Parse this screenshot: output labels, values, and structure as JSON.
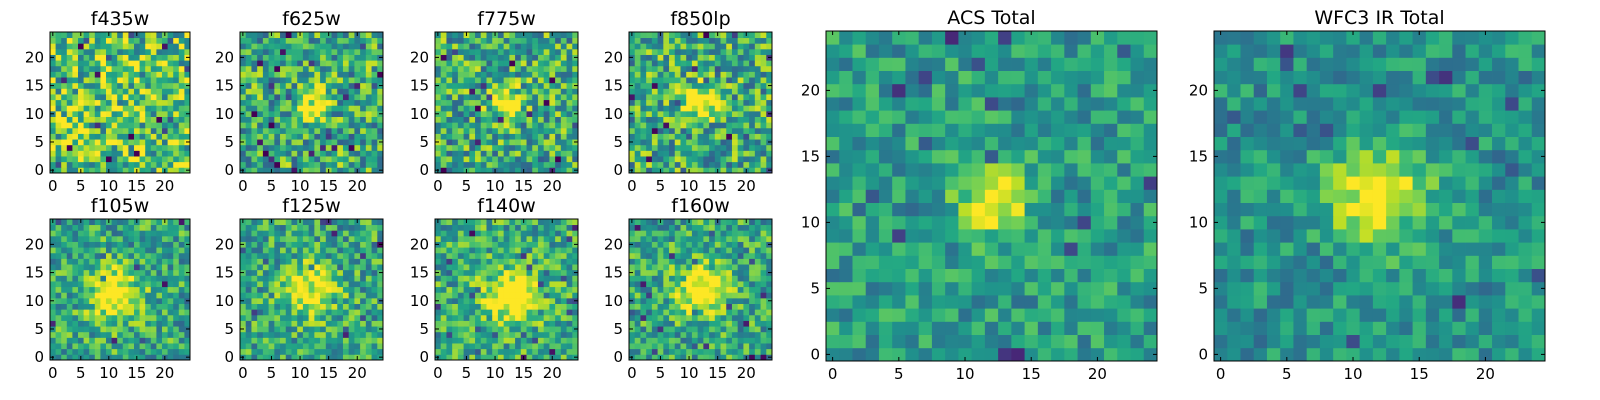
{
  "chart_data": {
    "type": "heatmap",
    "figure_description_colormap": "viridis",
    "grid_size": 25,
    "panels": [
      {
        "id": "f435w",
        "title": "f435w",
        "size": "small",
        "xticks": [
          "0",
          "5",
          "10",
          "15",
          "20"
        ],
        "yticks": [
          "0",
          "5",
          "10",
          "15",
          "20"
        ],
        "source_peak": null,
        "source_sigma": 0,
        "noise_scale": 1.0,
        "base": 0.72,
        "seed": 11
      },
      {
        "id": "f625w",
        "title": "f625w",
        "size": "small",
        "xticks": [
          "0",
          "5",
          "10",
          "15",
          "20"
        ],
        "yticks": [
          "0",
          "5",
          "10",
          "15",
          "20"
        ],
        "source_peak": [
          12,
          12
        ],
        "source_sigma": 1.8,
        "noise_scale": 0.9,
        "base": 0.62,
        "seed": 23
      },
      {
        "id": "f775w",
        "title": "f775w",
        "size": "small",
        "xticks": [
          "0",
          "5",
          "10",
          "15",
          "20"
        ],
        "yticks": [
          "0",
          "5",
          "10",
          "15",
          "20"
        ],
        "source_peak": [
          12,
          12
        ],
        "source_sigma": 1.9,
        "noise_scale": 0.9,
        "base": 0.62,
        "seed": 37
      },
      {
        "id": "f850lp",
        "title": "f850lp",
        "size": "small",
        "xticks": [
          "0",
          "5",
          "10",
          "15",
          "20"
        ],
        "yticks": [
          "0",
          "5",
          "10",
          "15",
          "20"
        ],
        "source_peak": [
          12,
          12
        ],
        "source_sigma": 2.0,
        "noise_scale": 0.9,
        "base": 0.62,
        "seed": 41
      },
      {
        "id": "f105w",
        "title": "f105w",
        "size": "small",
        "xticks": [
          "0",
          "5",
          "10",
          "15",
          "20"
        ],
        "yticks": [
          "0",
          "5",
          "10",
          "15",
          "20"
        ],
        "source_peak": [
          11,
          11
        ],
        "source_sigma": 3.2,
        "noise_scale": 0.75,
        "base": 0.6,
        "seed": 53
      },
      {
        "id": "f125w",
        "title": "f125w",
        "size": "small",
        "xticks": [
          "0",
          "5",
          "10",
          "15",
          "20"
        ],
        "yticks": [
          "0",
          "5",
          "10",
          "15",
          "20"
        ],
        "source_peak": [
          12,
          12
        ],
        "source_sigma": 3.0,
        "noise_scale": 0.75,
        "base": 0.6,
        "seed": 61
      },
      {
        "id": "f140w",
        "title": "f140w",
        "size": "small",
        "xticks": [
          "0",
          "5",
          "10",
          "15",
          "20"
        ],
        "yticks": [
          "0",
          "5",
          "10",
          "15",
          "20"
        ],
        "source_peak": [
          13,
          11
        ],
        "source_sigma": 3.2,
        "noise_scale": 0.75,
        "base": 0.62,
        "seed": 71
      },
      {
        "id": "f160w",
        "title": "f160w",
        "size": "small",
        "xticks": [
          "0",
          "5",
          "10",
          "15",
          "20"
        ],
        "yticks": [
          "0",
          "5",
          "10",
          "15",
          "20"
        ],
        "source_peak": [
          12,
          12
        ],
        "source_sigma": 3.0,
        "noise_scale": 0.75,
        "base": 0.6,
        "seed": 83
      },
      {
        "id": "acs-total",
        "title": "ACS Total",
        "size": "large",
        "xticks": [
          "0",
          "5",
          "10",
          "15",
          "20"
        ],
        "yticks": [
          "0",
          "5",
          "10",
          "15",
          "20"
        ],
        "source_peak": [
          12,
          11.5
        ],
        "source_sigma": 1.7,
        "noise_scale": 0.55,
        "base": 0.55,
        "seed": 97
      },
      {
        "id": "wfc3-ir-total",
        "title": "WFC3 IR Total",
        "size": "large",
        "xticks": [
          "0",
          "5",
          "10",
          "15",
          "20"
        ],
        "yticks": [
          "0",
          "5",
          "10",
          "15",
          "20"
        ],
        "source_peak": [
          12,
          12
        ],
        "source_sigma": 2.6,
        "noise_scale": 0.5,
        "base": 0.52,
        "seed": 109
      }
    ]
  }
}
